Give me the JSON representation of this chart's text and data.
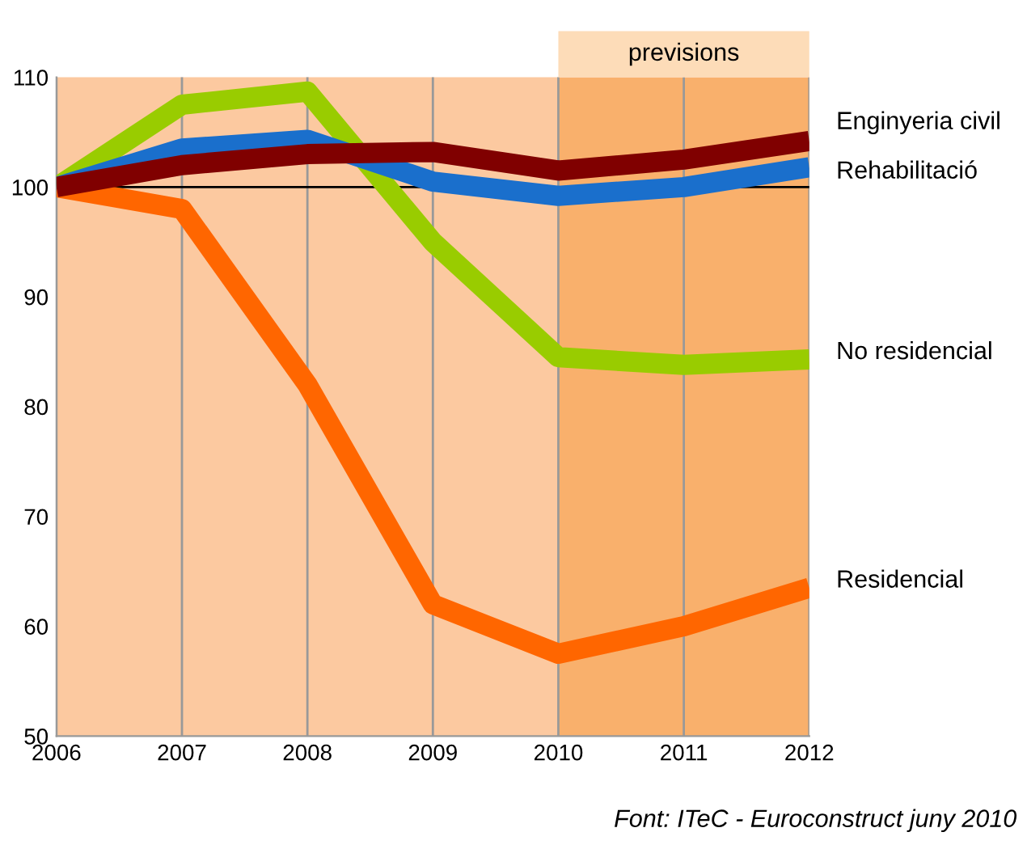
{
  "chart_data": {
    "type": "line",
    "x": [
      2006,
      2007,
      2008,
      2009,
      2010,
      2011,
      2012
    ],
    "series": [
      {
        "name": "Residencial",
        "color": "#ff6600",
        "values": [
          100,
          98,
          82,
          62,
          57.5,
          60,
          63.5
        ]
      },
      {
        "name": "No residencial",
        "color": "#99cc00",
        "values": [
          100,
          107.5,
          108.7,
          95,
          84.5,
          83.8,
          84.3
        ]
      },
      {
        "name": "Rehabilitació",
        "color": "#1a6fcc",
        "values": [
          100,
          103.5,
          104.3,
          100.5,
          99.2,
          100,
          101.8
        ]
      },
      {
        "name": "Enginyeria civil",
        "color": "#800000",
        "values": [
          100,
          102,
          103,
          103.2,
          101.5,
          102.5,
          104.2
        ]
      }
    ],
    "xlim": [
      2006,
      2012
    ],
    "xticks": [
      2006,
      2007,
      2008,
      2009,
      2010,
      2011,
      2012
    ],
    "ylim": [
      50,
      110
    ],
    "yticks": [
      50,
      60,
      70,
      80,
      90,
      100,
      110
    ],
    "grid": "x",
    "legend": false,
    "marker": "none",
    "line_style": "solid",
    "ref_lines": [
      {
        "axis": "y",
        "value": 100,
        "color": "#000000"
      }
    ],
    "bands": [
      {
        "axis": "x",
        "from": 2010,
        "to": 2012,
        "label": "previsions",
        "color": "#f9b06c"
      }
    ],
    "annotations": [
      "Font: ITeC - Euroconstruct juny 2010"
    ]
  }
}
